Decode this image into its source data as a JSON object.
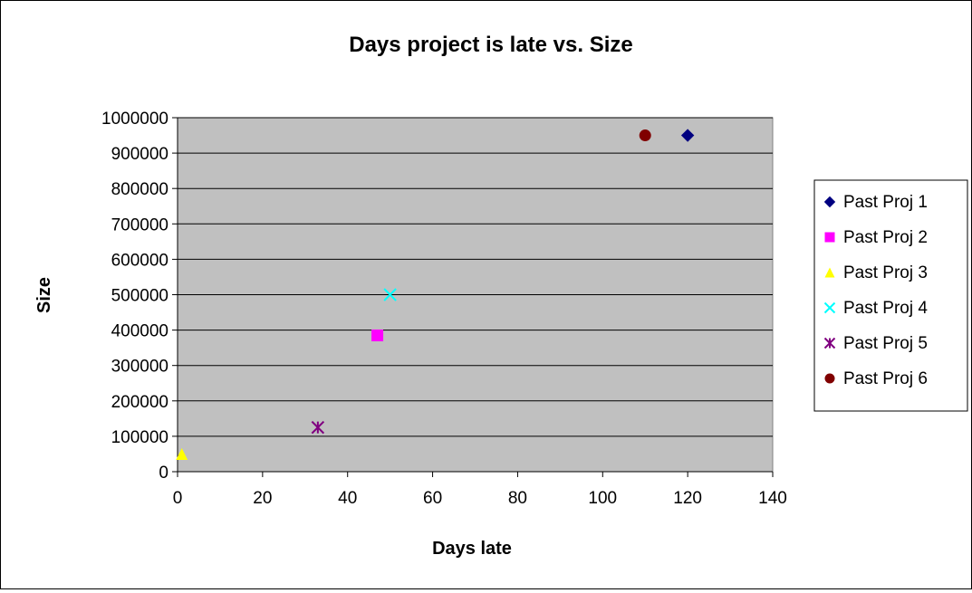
{
  "chart_data": {
    "type": "scatter",
    "title": "Days project is late vs. Size",
    "xlabel": "Days late",
    "ylabel": "Size",
    "xlim": [
      0,
      140
    ],
    "ylim": [
      0,
      1000000
    ],
    "x_ticks": [
      "0",
      "20",
      "40",
      "60",
      "80",
      "100",
      "120",
      "140"
    ],
    "y_ticks": [
      "0",
      "100000",
      "200000",
      "300000",
      "400000",
      "500000",
      "600000",
      "700000",
      "800000",
      "900000",
      "1000000"
    ],
    "grid": "horizontal major gridlines",
    "plot_background": "#c0c0c0",
    "legend_position": "right",
    "series": [
      {
        "name": "Past Proj 1",
        "marker": "diamond",
        "color": "#000080",
        "x": 120,
        "y": 950000
      },
      {
        "name": "Past Proj 2",
        "marker": "square",
        "color": "#ff00ff",
        "x": 47,
        "y": 385000
      },
      {
        "name": "Past Proj 3",
        "marker": "triangle",
        "color": "#ffff00",
        "x": 1,
        "y": 50000
      },
      {
        "name": "Past Proj 4",
        "marker": "x",
        "color": "#00ffff",
        "x": 50,
        "y": 500000
      },
      {
        "name": "Past Proj 5",
        "marker": "asterisk",
        "color": "#800080",
        "x": 33,
        "y": 125000
      },
      {
        "name": "Past Proj 6",
        "marker": "circle",
        "color": "#800000",
        "x": 110,
        "y": 950000
      }
    ]
  }
}
